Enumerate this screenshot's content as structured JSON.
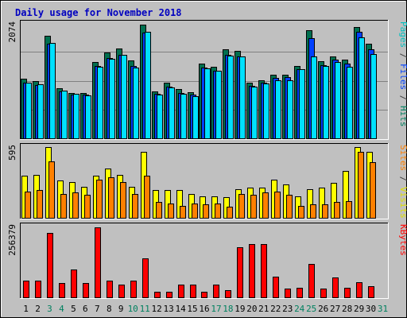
{
  "chart_data": {
    "type": "bar",
    "title": "Daily usage for November 2018",
    "categories": [
      "1",
      "2",
      "3",
      "4",
      "5",
      "6",
      "7",
      "8",
      "9",
      "10",
      "11",
      "12",
      "13",
      "14",
      "15",
      "16",
      "17",
      "18",
      "19",
      "20",
      "21",
      "22",
      "23",
      "24",
      "25",
      "26",
      "27",
      "28",
      "29",
      "30",
      "31"
    ],
    "weekend_days": [
      "3",
      "4",
      "10",
      "11",
      "17",
      "18",
      "24",
      "25",
      "31"
    ],
    "panels": [
      {
        "id": "top",
        "max_label": "2074",
        "ymax": 2074,
        "legend": [
          {
            "text": "Pages",
            "color": "#00c0c0"
          },
          {
            "text": " / ",
            "color": "#404040"
          },
          {
            "text": "Files",
            "color": "#0040ff"
          },
          {
            "text": " / ",
            "color": "#404040"
          },
          {
            "text": "Hits",
            "color": "#008060"
          }
        ],
        "series": [
          {
            "name": "Hits",
            "color": "#006f4f",
            "values": [
              1070,
              1030,
              1850,
              900,
              820,
              820,
              1380,
              1550,
              1620,
              1400,
              2050,
              850,
              1000,
              890,
              830,
              1340,
              1290,
              1600,
              1580,
              1000,
              1050,
              1150,
              1150,
              1300,
              1940,
              1390,
              1480,
              1410,
              2000,
              1700,
              0
            ]
          },
          {
            "name": "Files",
            "color": "#0040ff",
            "values": [
              1000,
              960,
              1700,
              850,
              790,
              790,
              1300,
              1450,
              1500,
              1300,
              1900,
              800,
              930,
              820,
              780,
              1280,
              1220,
              1500,
              1480,
              950,
              1000,
              1090,
              1100,
              1250,
              1800,
              1320,
              1420,
              1350,
              1920,
              1600,
              0
            ]
          },
          {
            "name": "Pages",
            "color": "#00e0ff",
            "values": [
              1000,
              970,
              1710,
              860,
              800,
              770,
              1290,
              1430,
              1500,
              1280,
              1910,
              790,
              920,
              800,
              760,
              1260,
              1210,
              1490,
              1470,
              930,
              980,
              1040,
              1050,
              1250,
              1480,
              1300,
              1380,
              1290,
              1820,
              1510,
              0
            ]
          }
        ]
      },
      {
        "id": "middle",
        "max_label": "595",
        "ymax": 595,
        "legend": [
          {
            "text": "Sites",
            "color": "#ff8000"
          },
          {
            "text": " / ",
            "color": "#404040"
          },
          {
            "text": "Visits",
            "color": "#e0e000"
          }
        ],
        "series": [
          {
            "name": "Visits",
            "color": "#ffff00",
            "values": [
              350,
              360,
              590,
              310,
              300,
              260,
              350,
              410,
              360,
              260,
              550,
              230,
              230,
              230,
              200,
              180,
              180,
              170,
              240,
              250,
              250,
              320,
              280,
              180,
              240,
              250,
              290,
              390,
              590,
              550,
              0
            ]
          },
          {
            "name": "Sites",
            "color": "#ff8000",
            "values": [
              220,
              230,
              470,
              200,
              210,
              190,
              320,
              340,
              300,
              200,
              350,
              130,
              120,
              100,
              120,
              110,
              120,
              90,
              200,
              190,
              210,
              220,
              190,
              100,
              110,
              110,
              130,
              140,
              550,
              460,
              0
            ]
          }
        ]
      },
      {
        "id": "bottom",
        "max_label": "256379",
        "ymax": 256379,
        "legend": [
          {
            "text": "KBytes",
            "color": "#ff0000"
          }
        ],
        "series": [
          {
            "name": "KBytes",
            "color": "#ff0000",
            "values": [
              60000,
              60000,
              230000,
              50000,
              100000,
              50000,
              250000,
              60000,
              45000,
              60000,
              140000,
              20000,
              20000,
              45000,
              45000,
              20000,
              45000,
              25000,
              180000,
              190000,
              190000,
              75000,
              30000,
              35000,
              120000,
              30000,
              70000,
              35000,
              55000,
              40000,
              0
            ]
          }
        ]
      }
    ]
  }
}
